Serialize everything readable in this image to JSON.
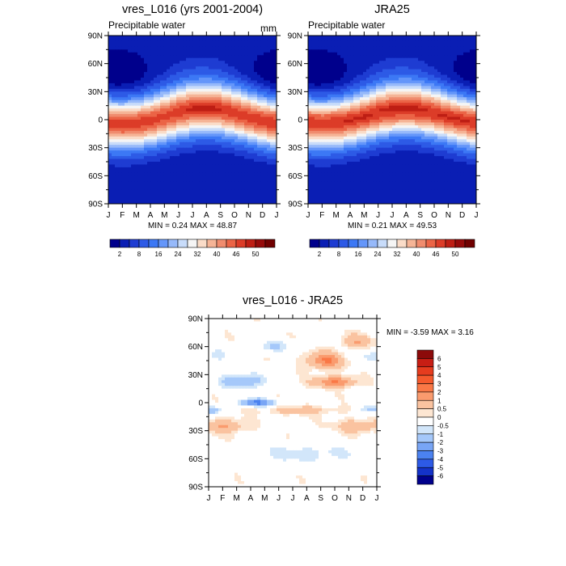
{
  "chart_data": [
    {
      "type": "heatmap",
      "title": "vres_L016 (yrs 2001-2004)",
      "subtitle": "Precipitable water",
      "units": "mm",
      "x_ticks": [
        "J",
        "F",
        "M",
        "A",
        "M",
        "J",
        "J",
        "A",
        "S",
        "O",
        "N",
        "D",
        "J"
      ],
      "y_ticks": [
        "90N",
        "60N",
        "30N",
        "0",
        "30S",
        "60S",
        "90S"
      ],
      "stats": "MIN =   0.24 MAX =  48.87",
      "colorbar": {
        "orientation": "horizontal",
        "labels": [
          "2",
          "8",
          "16",
          "24",
          "32",
          "40",
          "46",
          "50"
        ],
        "colors": [
          "#00008c",
          "#0a1eb4",
          "#1e3cd2",
          "#2d5ae6",
          "#3c78f5",
          "#6496fa",
          "#96b9fa",
          "#c8dcfa",
          "#f5f5f5",
          "#fadcc8",
          "#f5b496",
          "#f08c6e",
          "#eb6446",
          "#dc3c28",
          "#be1e14",
          "#960a0a",
          "#700000"
        ]
      }
    },
    {
      "type": "heatmap",
      "title": "JRA25",
      "subtitle": "Precipitable water",
      "x_ticks": [
        "J",
        "F",
        "M",
        "A",
        "M",
        "J",
        "J",
        "A",
        "S",
        "O",
        "N",
        "D",
        "J"
      ],
      "y_ticks": [
        "90N",
        "60N",
        "30N",
        "0",
        "30S",
        "60S",
        "90S"
      ],
      "stats": "MIN =   0.21 MAX =  49.53",
      "colorbar": {
        "orientation": "horizontal",
        "labels": [
          "2",
          "8",
          "16",
          "24",
          "32",
          "40",
          "46",
          "50"
        ],
        "colors": [
          "#00008c",
          "#0a1eb4",
          "#1e3cd2",
          "#2d5ae6",
          "#3c78f5",
          "#6496fa",
          "#96b9fa",
          "#c8dcfa",
          "#f5f5f5",
          "#fadcc8",
          "#f5b496",
          "#f08c6e",
          "#eb6446",
          "#dc3c28",
          "#be1e14",
          "#960a0a",
          "#700000"
        ]
      }
    },
    {
      "type": "heatmap",
      "title": "vres_L016 - JRA25",
      "x_ticks": [
        "J",
        "F",
        "M",
        "A",
        "M",
        "J",
        "J",
        "A",
        "S",
        "O",
        "N",
        "D",
        "J"
      ],
      "y_ticks": [
        "90N",
        "60N",
        "30N",
        "0",
        "30S",
        "60S",
        "90S"
      ],
      "stats": "MIN =  -3.59 MAX =   3.16",
      "colorbar": {
        "orientation": "vertical",
        "labels": [
          "6",
          "5",
          "4",
          "3",
          "2",
          "1",
          "0.5",
          "0",
          "-0.5",
          "-1",
          "-2",
          "-3",
          "-4",
          "-5",
          "-6"
        ],
        "colors": [
          "#8c0a0a",
          "#c81e14",
          "#e63c1e",
          "#f55a2d",
          "#fa7846",
          "#fa9b6e",
          "#fac3a0",
          "#fde6d2",
          "#ffffff",
          "#d2e6fa",
          "#a5c8fa",
          "#78a5f5",
          "#4b82f0",
          "#2d5ae6",
          "#1432c8",
          "#00008c"
        ]
      }
    }
  ]
}
